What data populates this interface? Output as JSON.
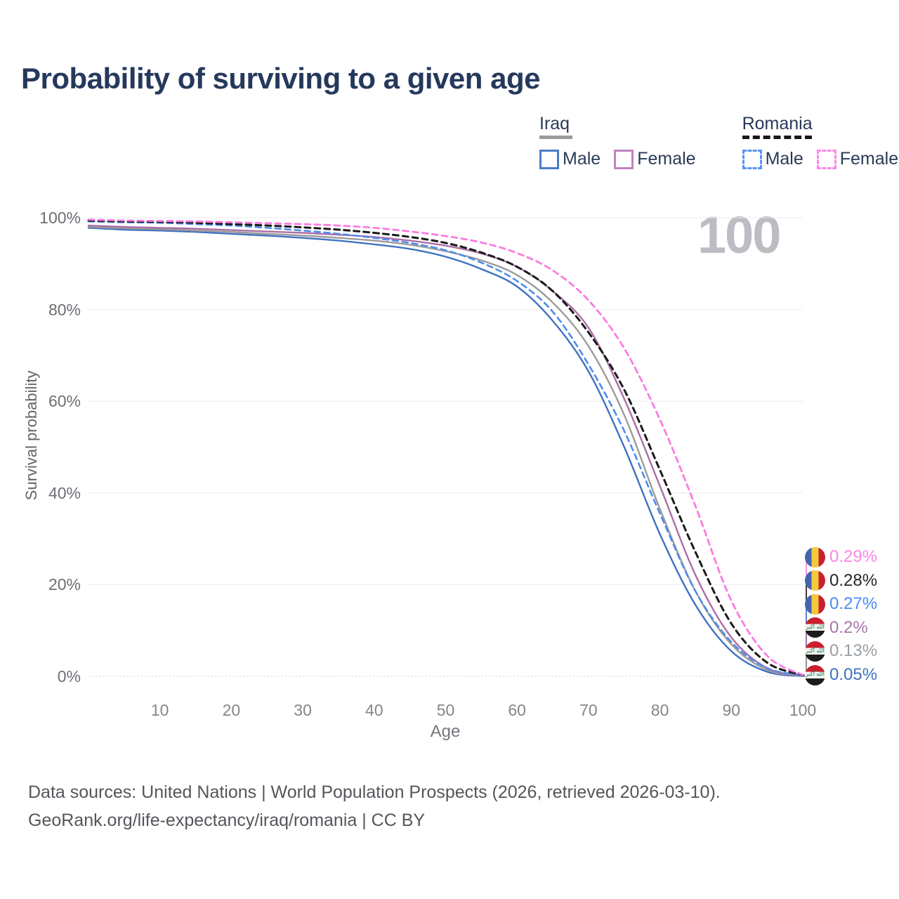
{
  "title": "Probability of surviving to a given age",
  "watermark_age": "100",
  "legend": {
    "groups": [
      {
        "country": "Iraq",
        "underline": "solid",
        "underline_color": "#9b9b9f",
        "items": [
          {
            "label": "Male",
            "color": "#4b7cc4",
            "dashed": false
          },
          {
            "label": "Female",
            "color": "#c083bc",
            "dashed": false
          }
        ]
      },
      {
        "country": "Romania",
        "underline": "dashed",
        "underline_color": "#17171a",
        "items": [
          {
            "label": "Male",
            "color": "#5b92f5",
            "dashed": true
          },
          {
            "label": "Female",
            "color": "#fb87e8",
            "dashed": true
          }
        ]
      }
    ]
  },
  "chart_data": {
    "type": "line",
    "title": "Probability of surviving to a given age",
    "xlabel": "Age",
    "ylabel": "Survival probability",
    "xlim": [
      0,
      100
    ],
    "ylim": [
      0,
      100
    ],
    "grid": true,
    "x_ticks": [
      10,
      20,
      30,
      40,
      50,
      60,
      70,
      80,
      90,
      100
    ],
    "y_tick_values": [
      100,
      80,
      60,
      40,
      20,
      0
    ],
    "y_tick_labels": [
      "100%",
      "80%",
      "60%",
      "40%",
      "20%",
      "0%"
    ],
    "x": [
      0,
      5,
      10,
      15,
      20,
      25,
      30,
      35,
      40,
      45,
      50,
      55,
      60,
      65,
      70,
      75,
      80,
      85,
      90,
      95,
      100
    ],
    "series": [
      {
        "id": "iraq_male",
        "country": "Iraq",
        "sex": "Male",
        "style": "solid",
        "color": "#3f72c0",
        "width": 2.4,
        "end_label": "0.05%",
        "end_label_color": "#3f72c0",
        "flag": "iraq",
        "values": [
          97.8,
          97.4,
          97.2,
          96.9,
          96.5,
          96.1,
          95.6,
          95.0,
          94.2,
          93.2,
          91.5,
          88.8,
          85.0,
          77.5,
          66.5,
          50.0,
          31.0,
          15.5,
          5.5,
          1.0,
          0.05
        ]
      },
      {
        "id": "iraq_both",
        "country": "Iraq",
        "sex": "Both",
        "style": "solid",
        "color": "#9b9b9b",
        "width": 2.4,
        "end_label": "0.13%",
        "end_label_color": "#9a9fa3",
        "flag": "iraq",
        "values": [
          98.0,
          97.7,
          97.5,
          97.2,
          96.9,
          96.5,
          96.1,
          95.6,
          95.0,
          94.1,
          92.7,
          90.7,
          87.5,
          81.5,
          72.0,
          57.0,
          36.5,
          18.5,
          7.0,
          1.4,
          0.13
        ]
      },
      {
        "id": "iraq_female",
        "country": "Iraq",
        "sex": "Female",
        "style": "solid",
        "color": "#ab6fa6",
        "width": 2.4,
        "end_label": "0.2%",
        "end_label_color": "#a874ab",
        "flag": "iraq",
        "values": [
          98.3,
          98.0,
          97.8,
          97.6,
          97.3,
          97.0,
          96.7,
          96.3,
          95.8,
          95.0,
          93.9,
          92.2,
          89.3,
          84.0,
          76.0,
          60.5,
          41.5,
          22.0,
          8.5,
          1.8,
          0.2
        ]
      },
      {
        "id": "romania_male",
        "country": "Romania",
        "sex": "Male",
        "style": "dashed",
        "color": "#4f8cec",
        "width": 2.6,
        "end_label": "0.27%",
        "end_label_color": "#4a8bf0",
        "flag": "romania",
        "values": [
          99.2,
          99.0,
          98.9,
          98.6,
          98.3,
          97.8,
          97.2,
          96.5,
          95.6,
          94.5,
          92.9,
          90.2,
          86.2,
          79.5,
          68.0,
          53.5,
          35.5,
          18.5,
          7.5,
          1.8,
          0.27
        ]
      },
      {
        "id": "romania_both",
        "country": "Romania",
        "sex": "Both",
        "style": "dashed",
        "color": "#1a1a1a",
        "width": 3,
        "end_label": "0.28%",
        "end_label_color": "#26262b",
        "flag": "romania",
        "values": [
          99.4,
          99.2,
          99.1,
          98.9,
          98.6,
          98.3,
          97.9,
          97.4,
          96.7,
          95.8,
          94.5,
          92.4,
          89.3,
          84.0,
          75.0,
          62.5,
          45.0,
          27.0,
          11.5,
          3.0,
          0.28
        ]
      },
      {
        "id": "romania_female",
        "country": "Romania",
        "sex": "Female",
        "style": "dashed",
        "color": "#fb7ce1",
        "width": 2.8,
        "end_label": "0.29%",
        "end_label_color": "#fa85e3",
        "flag": "romania",
        "values": [
          99.6,
          99.4,
          99.3,
          99.2,
          99.0,
          98.8,
          98.6,
          98.3,
          97.8,
          97.0,
          96.0,
          94.6,
          92.3,
          88.5,
          82.0,
          71.5,
          56.0,
          37.0,
          16.5,
          4.5,
          0.29
        ]
      }
    ],
    "end_label_order": [
      "romania_female",
      "romania_both",
      "romania_male",
      "iraq_female",
      "iraq_both",
      "iraq_male"
    ],
    "legend_position": "top-right"
  },
  "footer": {
    "line1": "Data sources: United Nations | World Population Prospects (2026, retrieved 2026-03-10).",
    "line2": "GeoRank.org/life-expectancy/iraq/romania | CC BY"
  }
}
